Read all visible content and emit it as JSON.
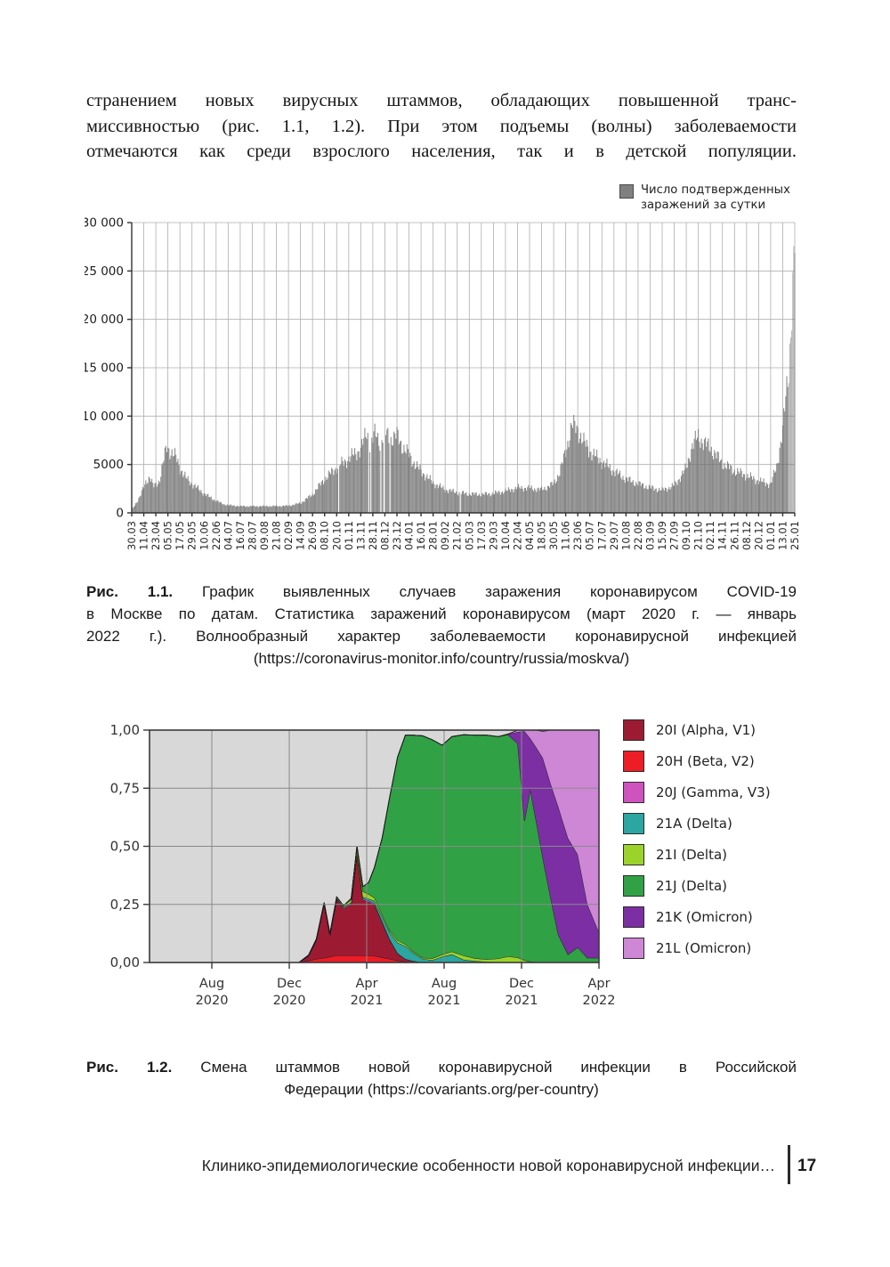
{
  "intro_paragraph": {
    "lines": [
      "странением новых вирусных штаммов, обладающих повышенной транс-",
      "миссивностью (рис. 1.1, 1.2). При этом подъемы (волны) заболеваемости",
      "отмечаются как среди взрослого населения, так и в детской популяции."
    ]
  },
  "figure1": {
    "legend": {
      "swatch_color": "#808080",
      "text_line1": "Число подтвержденных",
      "text_line2": "заражений за сутки"
    },
    "caption": {
      "prefix": "Рис. 1.1.",
      "line1_rest": "График выявленных случаев заражения коронавирусом COVID-19",
      "line2": "в Москве по датам. Статистика заражений коронавирусом (март 2020 г. — январь",
      "line3": "2022 г.). Волнообразный характер заболеваемости коронавирусной инфекцией",
      "line4": "(https://coronavirus-monitor.info/country/russia/moskva/)"
    },
    "chart_data": {
      "type": "bar",
      "bar_color": "#878787",
      "bar_color_light": "#b4b4b4",
      "ylim": [
        0,
        30000
      ],
      "yticks": [
        {
          "v": 0,
          "label": "0"
        },
        {
          "v": 5000,
          "label": "5000"
        },
        {
          "v": 10000,
          "label": "10 000"
        },
        {
          "v": 15000,
          "label": "15 000"
        },
        {
          "v": 20000,
          "label": "20 000"
        },
        {
          "v": 25000,
          "label": "25 000"
        },
        {
          "v": 30000,
          "label": "30 000"
        }
      ],
      "x_tick_labels": [
        "30.03",
        "11.04",
        "23.04",
        "05.05",
        "17.05",
        "29.05",
        "10.06",
        "22.06",
        "04.07",
        "16.07",
        "28.07",
        "09.08",
        "21.08",
        "02.09",
        "14.09",
        "26.09",
        "08.10",
        "20.10",
        "01.11",
        "13.11",
        "28.11",
        "08.12",
        "23.12",
        "04.01",
        "16.01",
        "28.01",
        "09.02",
        "21.02",
        "05.03",
        "17.03",
        "29.03",
        "10.04",
        "22.04",
        "04.05",
        "18.05",
        "30.05",
        "11.06",
        "23.06",
        "05.07",
        "17.07",
        "29.07",
        "10.08",
        "22.08",
        "03.09",
        "15.09",
        "27.09",
        "09.10",
        "21.10",
        "02.11",
        "14.11",
        "26.11",
        "08.12",
        "20.12",
        "01.01",
        "13.01",
        "25.01"
      ],
      "anchors": [
        [
          0,
          300
        ],
        [
          0.7,
          1700
        ],
        [
          1.2,
          3300
        ],
        [
          1.5,
          3700
        ],
        [
          1.8,
          2700
        ],
        [
          2.3,
          3300
        ],
        [
          2.9,
          6900
        ],
        [
          3.3,
          6200
        ],
        [
          3.7,
          5700
        ],
        [
          4,
          4600
        ],
        [
          4.5,
          3600
        ],
        [
          5,
          3000
        ],
        [
          5.5,
          2500
        ],
        [
          6,
          2000
        ],
        [
          6.5,
          1600
        ],
        [
          7,
          1250
        ],
        [
          7.5,
          950
        ],
        [
          8,
          800
        ],
        [
          9,
          690
        ],
        [
          10,
          680
        ],
        [
          11,
          690
        ],
        [
          12,
          700
        ],
        [
          13,
          730
        ],
        [
          14,
          1000
        ],
        [
          15,
          1900
        ],
        [
          16,
          3500
        ],
        [
          17,
          4700
        ],
        [
          18,
          5600
        ],
        [
          19,
          6600
        ],
        [
          19.5,
          8300
        ],
        [
          19.8,
          7100
        ],
        [
          20.2,
          8200
        ],
        [
          20.6,
          7300
        ],
        [
          21,
          8400
        ],
        [
          21.5,
          7600
        ],
        [
          22,
          8000
        ],
        [
          22.5,
          6800
        ],
        [
          23,
          6000
        ],
        [
          23.5,
          5000
        ],
        [
          24,
          4300
        ],
        [
          25,
          3100
        ],
        [
          26,
          2400
        ],
        [
          27,
          2100
        ],
        [
          28,
          1950
        ],
        [
          29,
          1900
        ],
        [
          30,
          2000
        ],
        [
          31,
          2250
        ],
        [
          32,
          2600
        ],
        [
          33,
          2550
        ],
        [
          34,
          2400
        ],
        [
          35,
          3000
        ],
        [
          35.5,
          4200
        ],
        [
          36,
          6300
        ],
        [
          36.5,
          9100
        ],
        [
          37,
          8600
        ],
        [
          37.5,
          7300
        ],
        [
          38,
          6400
        ],
        [
          38.5,
          5800
        ],
        [
          39,
          5300
        ],
        [
          40,
          4300
        ],
        [
          41,
          3500
        ],
        [
          42,
          3000
        ],
        [
          43,
          2600
        ],
        [
          44,
          2350
        ],
        [
          45,
          2800
        ],
        [
          46,
          4600
        ],
        [
          46.5,
          7000
        ],
        [
          47,
          7900
        ],
        [
          47.5,
          7200
        ],
        [
          48,
          6700
        ],
        [
          49,
          5100
        ],
        [
          50,
          4350
        ],
        [
          51,
          3850
        ],
        [
          52,
          3300
        ],
        [
          53,
          2950
        ],
        [
          53.5,
          4800
        ],
        [
          54,
          8500
        ],
        [
          54.5,
          15000
        ],
        [
          54.8,
          22500
        ],
        [
          55,
          27800
        ]
      ],
      "days_per_tick": 12,
      "missing_day_indices": [
        206,
        236,
        238,
        248,
        251,
        252,
        257,
        327
      ]
    }
  },
  "figure2": {
    "caption": {
      "prefix": "Рис. 1.2.",
      "line1_rest": "Смена штаммов новой коронавирусной инфекции в Российской",
      "line2": "Федерации (https://covariants.org/per-country)"
    },
    "chart_data": {
      "type": "area",
      "stacked": true,
      "plot_bg": "#d8d8d8",
      "xlim": [
        -0.22,
        23
      ],
      "ylim": [
        0,
        1
      ],
      "x_unit": "months since May 2020",
      "x_ticks": [
        {
          "m": 3,
          "line1": "Aug",
          "line2": "2020"
        },
        {
          "m": 7,
          "line1": "Dec",
          "line2": "2020"
        },
        {
          "m": 11,
          "line1": "Apr",
          "line2": "2021"
        },
        {
          "m": 15,
          "line1": "Aug",
          "line2": "2021"
        },
        {
          "m": 19,
          "line1": "Dec",
          "line2": "2021"
        },
        {
          "m": 23,
          "line1": "Apr",
          "line2": "2022"
        }
      ],
      "yticks": [
        {
          "v": 0,
          "label": "0,00"
        },
        {
          "v": 0.25,
          "label": "0,25"
        },
        {
          "v": 0.5,
          "label": "0,50"
        },
        {
          "v": 0.75,
          "label": "0,75"
        },
        {
          "v": 1,
          "label": "1,00"
        }
      ],
      "legend": [
        {
          "id": "20I",
          "label": "20I (Alpha, V1)",
          "color": "#9c1b33"
        },
        {
          "id": "20H",
          "label": "20H (Beta, V2)",
          "color": "#ee1c25"
        },
        {
          "id": "20J",
          "label": "20J (Gamma, V3)",
          "color": "#cf53be"
        },
        {
          "id": "21A",
          "label": "21A (Delta)",
          "color": "#2ba6a0"
        },
        {
          "id": "21I",
          "label": "21I (Delta)",
          "color": "#9bd32a"
        },
        {
          "id": "21J",
          "label": "21J (Delta)",
          "color": "#31a146"
        },
        {
          "id": "21K",
          "label": "21K (Omicron)",
          "color": "#7c2fa3"
        },
        {
          "id": "21L",
          "label": "21L (Omicron)",
          "color": "#cd87d5"
        }
      ],
      "stack_order": [
        "20H",
        "20I",
        "20J",
        "21A",
        "21I",
        "21J",
        "21K",
        "21L"
      ],
      "x": [
        -0.22,
        7.5,
        8.0,
        8.4,
        8.8,
        9.1,
        9.45,
        9.8,
        10.2,
        10.5,
        10.8,
        11.1,
        11.4,
        11.8,
        12.2,
        12.6,
        13.0,
        13.4,
        13.9,
        14.4,
        14.9,
        15.4,
        16.0,
        16.6,
        17.2,
        17.8,
        18.3,
        18.8,
        19.15,
        19.45,
        19.75,
        20.1,
        20.5,
        20.9,
        21.4,
        21.9,
        22.4,
        23.0
      ],
      "values": {
        "20I": [
          0,
          0,
          0.02,
          0.08,
          0.23,
          0.09,
          0.24,
          0.2,
          0.22,
          0.43,
          0.24,
          0.23,
          0.22,
          0.15,
          0.08,
          0.03,
          0.01,
          0.005,
          0,
          0,
          0,
          0,
          0,
          0,
          0,
          0,
          0,
          0,
          0,
          0,
          0,
          0,
          0,
          0,
          0,
          0,
          0,
          0
        ],
        "20H": [
          0,
          0,
          0.008,
          0.015,
          0.02,
          0.025,
          0.03,
          0.03,
          0.03,
          0.03,
          0.03,
          0.03,
          0.028,
          0.022,
          0.015,
          0.008,
          0.004,
          0.002,
          0,
          0,
          0,
          0,
          0,
          0,
          0,
          0,
          0,
          0,
          0,
          0,
          0,
          0,
          0,
          0,
          0,
          0,
          0,
          0
        ],
        "20J": [
          0,
          0,
          0.002,
          0.003,
          0.004,
          0.004,
          0.005,
          0.005,
          0.005,
          0.006,
          0.006,
          0.006,
          0.005,
          0.004,
          0.003,
          0.002,
          0.001,
          0,
          0,
          0,
          0,
          0,
          0,
          0,
          0,
          0,
          0,
          0,
          0,
          0,
          0,
          0,
          0,
          0,
          0,
          0,
          0,
          0
        ],
        "21A": [
          0,
          0,
          0,
          0,
          0,
          0.001,
          0.002,
          0.003,
          0.004,
          0.005,
          0.006,
          0.008,
          0.012,
          0.02,
          0.03,
          0.045,
          0.055,
          0.035,
          0.015,
          0.01,
          0.025,
          0.035,
          0.012,
          0.006,
          0.003,
          0.002,
          0.001,
          0,
          0,
          0,
          0,
          0,
          0,
          0,
          0,
          0,
          0,
          0
        ],
        "21I": [
          0,
          0,
          0.002,
          0.003,
          0.004,
          0.004,
          0.005,
          0.006,
          0.012,
          0.022,
          0.025,
          0.02,
          0.014,
          0.01,
          0.008,
          0.01,
          0.008,
          0.006,
          0.005,
          0.008,
          0.01,
          0.012,
          0.018,
          0.012,
          0.01,
          0.015,
          0.025,
          0.022,
          0.01,
          0.004,
          0.002,
          0,
          0,
          0,
          0,
          0,
          0,
          0
        ],
        "21J": [
          0,
          0,
          0,
          0,
          0,
          0,
          0,
          0,
          0.004,
          0.008,
          0.02,
          0.05,
          0.13,
          0.33,
          0.58,
          0.79,
          0.9,
          0.93,
          0.955,
          0.94,
          0.9,
          0.925,
          0.95,
          0.96,
          0.965,
          0.955,
          0.955,
          0.92,
          0.6,
          0.74,
          0.61,
          0.45,
          0.28,
          0.12,
          0.035,
          0.065,
          0.02,
          0.02
        ],
        "21K": [
          0,
          0,
          0,
          0,
          0,
          0,
          0,
          0,
          0,
          0,
          0,
          0,
          0,
          0,
          0,
          0,
          0,
          0,
          0,
          0,
          0,
          0,
          0,
          0,
          0,
          0,
          0.002,
          0.05,
          0.385,
          0.22,
          0.315,
          0.43,
          0.49,
          0.55,
          0.5,
          0.4,
          0.23,
          0.11
        ],
        "21L": [
          0,
          0,
          0,
          0,
          0,
          0,
          0,
          0,
          0,
          0,
          0,
          0,
          0,
          0,
          0,
          0,
          0,
          0,
          0,
          0,
          0,
          0,
          0,
          0,
          0,
          0,
          0,
          0.01,
          0.012,
          0.04,
          0.075,
          0.115,
          0.23,
          0.33,
          0.465,
          0.535,
          0.75,
          0.87
        ]
      }
    }
  },
  "footer": {
    "running_title": "Клинико-эпидемиологические особенности новой коронавирусной инфекции…",
    "page_number": "17"
  }
}
